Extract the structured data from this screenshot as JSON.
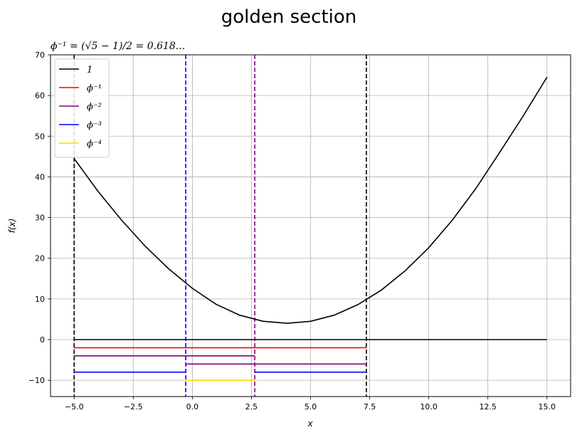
{
  "chart_data": {
    "type": "line",
    "title": "golden section",
    "subtitle": "ϕ⁻¹ = (√5 − 1)/2 = 0.618...",
    "xlabel": "x",
    "ylabel": "f(x)",
    "xlim": [
      -6.0,
      16.0
    ],
    "ylim": [
      -14,
      70
    ],
    "xticks": [
      -5.0,
      -2.5,
      0.0,
      2.5,
      5.0,
      7.5,
      10.0,
      12.5,
      15.0
    ],
    "xtick_labels": [
      "−5.0",
      "−2.5",
      "0.0",
      "2.5",
      "5.0",
      "7.5",
      "10.0",
      "12.5",
      "15.0"
    ],
    "yticks": [
      -10,
      0,
      10,
      20,
      30,
      40,
      50,
      60,
      70
    ],
    "ytick_labels": [
      "−10",
      "0",
      "10",
      "20",
      "30",
      "40",
      "50",
      "60",
      "70"
    ],
    "grid": true,
    "legend_position": "upper-left",
    "curve": {
      "name": "f(x)",
      "color": "#000000",
      "x": [
        -5,
        -4,
        -3,
        -2,
        -1,
        0,
        1,
        2,
        3,
        4,
        5,
        6,
        7,
        8,
        9,
        10,
        11,
        12,
        13,
        14,
        15
      ],
      "y": [
        44.5,
        36.5,
        29.4,
        23.0,
        17.4,
        12.6,
        8.7,
        6.0,
        4.5,
        4.0,
        4.5,
        6.0,
        8.6,
        12.2,
        16.9,
        22.6,
        29.4,
        37.2,
        46.0,
        55.0,
        64.5
      ]
    },
    "series": [
      {
        "name": "1",
        "color": "#000000",
        "segments": [
          {
            "x": [
              -5.0,
              15.0
            ],
            "y": 0
          }
        ]
      },
      {
        "name": "ϕ⁻¹",
        "color": "#ff0000",
        "segments": [
          {
            "x": [
              -5.0,
              7.36
            ],
            "y": -2
          }
        ]
      },
      {
        "name": "ϕ⁻²",
        "color": "#800080",
        "segments": [
          {
            "x": [
              -5.0,
              2.64
            ],
            "y": -4
          },
          {
            "x": [
              -0.28,
              7.36
            ],
            "y": -6
          }
        ]
      },
      {
        "name": "ϕ⁻³",
        "color": "#0000ff",
        "segments": [
          {
            "x": [
              -5.0,
              -0.28
            ],
            "y": -8
          },
          {
            "x": [
              2.64,
              7.36
            ],
            "y": -8
          }
        ]
      },
      {
        "name": "ϕ⁻⁴",
        "color": "#ffd700",
        "segments": [
          {
            "x": [
              -0.28,
              2.64
            ],
            "y": -10
          }
        ]
      }
    ],
    "vlines": [
      {
        "x": -5.0,
        "color": "#000000"
      },
      {
        "x": 7.36,
        "color": "#000000"
      },
      {
        "x": -0.28,
        "color": "#0000ff"
      },
      {
        "x": 2.64,
        "color": "#800080"
      }
    ],
    "legend": [
      {
        "label": "1",
        "color": "#000000"
      },
      {
        "label": "ϕ⁻¹",
        "color": "#ff0000"
      },
      {
        "label": "ϕ⁻²",
        "color": "#800080"
      },
      {
        "label": "ϕ⁻³",
        "color": "#0000ff"
      },
      {
        "label": "ϕ⁻⁴",
        "color": "#ffd700"
      }
    ]
  }
}
